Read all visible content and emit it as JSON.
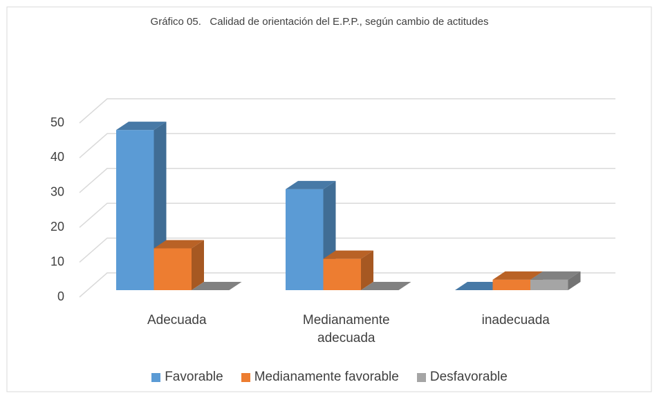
{
  "chart_data": {
    "type": "bar3d",
    "title": "Gráfico 05.   Calidad de orientación del E.P.P., según cambio de actitudes",
    "categories": [
      "Adecuada",
      "Medianamente adecuada",
      "inadecuada"
    ],
    "series": [
      {
        "name": "Favorable",
        "color": "#5b9bd5",
        "values": [
          46,
          29,
          0
        ]
      },
      {
        "name": "Medianamente favorable",
        "color": "#ed7d31",
        "values": [
          12,
          9,
          3
        ]
      },
      {
        "name": "Desfavorable",
        "color": "#a5a5a5",
        "values": [
          0,
          0,
          3
        ]
      }
    ],
    "ylim": [
      0,
      50
    ],
    "yticks": [
      0,
      10,
      20,
      30,
      40,
      50
    ],
    "grid": true,
    "legend": "bottom"
  }
}
